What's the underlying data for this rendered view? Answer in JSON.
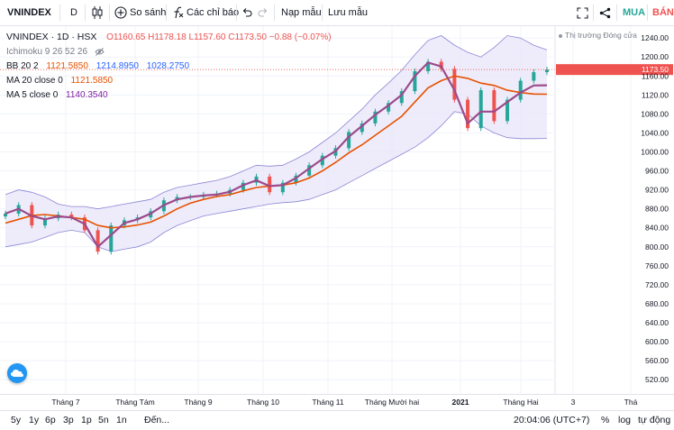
{
  "toolbar": {
    "symbol": "VNINDEX",
    "interval": "D",
    "compare_label": "So sánh",
    "indicators_label": "Các chỉ báo",
    "load_label": "Nạp mẫu",
    "save_label": "Lưu mẫu",
    "buy_label": "MUA",
    "sell_label": "BÁN",
    "icons": [
      "candles-icon",
      "plus-circle-icon",
      "function-icon",
      "undo-icon",
      "redo-icon",
      "fullscreen-icon",
      "share-icon"
    ]
  },
  "legend": {
    "title": "VNINDEX · 1D · HSX",
    "ohlc": "O1160.65  H1178.18  L1157.60  C1173.50  −0.88 (−0.07%)",
    "ichimoku_label": "Ichimoku 9 26 52 26",
    "bb_label": "BB 20 2",
    "bb_basis": "1121.5850",
    "bb_upper": "1214.8950",
    "bb_lower": "1028.2750",
    "ma20_label": "MA 20 close 0",
    "ma20_value": "1121.5850",
    "ma5_label": "MA 5 close 0",
    "ma5_value": "1140.3540"
  },
  "market_status": "Thị trường Đóng cửa",
  "bottom_bar": {
    "ranges": [
      "5y",
      "1y",
      "6p",
      "3p",
      "1p",
      "5n",
      "1n"
    ],
    "goto_label": "Đến...",
    "clock": "20:04:06 (UTC+7)",
    "percent_label": "%",
    "log_label": "log",
    "auto_label": "tự động"
  },
  "colors": {
    "up": "#26a69a",
    "down": "#ef5350",
    "bb_band_fill": "#e8e6f8",
    "bb_band_line": "#8c86d6",
    "ma20": "#e65100",
    "ma5": "#9c4a8c",
    "accent": "#2962ff"
  },
  "chart_data": {
    "type": "line",
    "title": "VNINDEX · 1D · HSX",
    "xlabel": "",
    "ylabel": "",
    "x_tick_labels": [
      "Tháng 7",
      "Tháng Tám",
      "Tháng 9",
      "Tháng 10",
      "Tháng 11",
      "Tháng Mười hai",
      "2021",
      "Tháng Hai",
      "3",
      "Thá"
    ],
    "y_tick_labels": [
      1240,
      1200,
      1160,
      1120,
      1080,
      1040,
      1000,
      960,
      920,
      880,
      840,
      800,
      760,
      720,
      680,
      640,
      600,
      560,
      520
    ],
    "y_range": [
      490,
      1265
    ],
    "last_price_label": "1173.50",
    "grid": true,
    "legend_position": "top-left",
    "x": [
      "Jun-11",
      "Jun-18",
      "Jun-25",
      "Jul-02",
      "Jul-09",
      "Jul-16",
      "Jul-23",
      "Jul-30",
      "Aug-06",
      "Aug-13",
      "Aug-20",
      "Aug-27",
      "Sep-03",
      "Sep-10",
      "Sep-17",
      "Sep-24",
      "Oct-01",
      "Oct-08",
      "Oct-15",
      "Oct-22",
      "Oct-29",
      "Nov-05",
      "Nov-12",
      "Nov-19",
      "Nov-26",
      "Dec-03",
      "Dec-10",
      "Dec-17",
      "Dec-24",
      "Dec-31",
      "Jan-07",
      "Jan-14",
      "Jan-19",
      "Jan-22",
      "Jan-26",
      "Jan-29",
      "Feb-02",
      "Feb-05",
      "Feb-09",
      "Feb-18",
      "Feb-22",
      "Feb-24"
    ],
    "series": [
      {
        "name": "VNINDEX",
        "values": [
          870,
          888,
          845,
          860,
          868,
          862,
          835,
          790,
          845,
          856,
          862,
          875,
          898,
          905,
          905,
          910,
          912,
          920,
          935,
          948,
          915,
          935,
          950,
          972,
          992,
          1008,
          1042,
          1060,
          1085,
          1103,
          1128,
          1170,
          1190,
          1175,
          1110,
          1050,
          1130,
          1065,
          1110,
          1150,
          1168,
          1173.5
        ]
      },
      {
        "name": "MA 20 close 0",
        "values": [
          850,
          858,
          866,
          868,
          865,
          862,
          858,
          845,
          840,
          842,
          846,
          852,
          865,
          880,
          892,
          900,
          906,
          910,
          918,
          925,
          928,
          930,
          935,
          945,
          960,
          978,
          998,
          1015,
          1035,
          1055,
          1075,
          1105,
          1135,
          1150,
          1160,
          1155,
          1145,
          1140,
          1130,
          1125,
          1122,
          1121.585
        ]
      },
      {
        "name": "MA 5 close 0",
        "values": [
          870,
          880,
          865,
          858,
          864,
          862,
          848,
          800,
          825,
          850,
          858,
          870,
          888,
          900,
          905,
          908,
          910,
          916,
          930,
          940,
          928,
          930,
          945,
          965,
          985,
          1002,
          1032,
          1055,
          1078,
          1098,
          1120,
          1160,
          1188,
          1180,
          1130,
          1060,
          1085,
          1085,
          1105,
          1125,
          1140,
          1140.354
        ]
      },
      {
        "name": "BB 20 2",
        "values": [
          910,
          920,
          915,
          905,
          890,
          885,
          885,
          880,
          885,
          890,
          895,
          900,
          915,
          925,
          930,
          935,
          940,
          948,
          960,
          972,
          970,
          972,
          985,
          1000,
          1020,
          1040,
          1065,
          1090,
          1120,
          1145,
          1172,
          1205,
          1235,
          1245,
          1225,
          1210,
          1200,
          1220,
          1245,
          1240,
          1225,
          1214.895
        ]
      },
      {
        "name": "BB lower",
        "values": [
          800,
          805,
          810,
          820,
          830,
          835,
          830,
          800,
          790,
          795,
          800,
          810,
          830,
          845,
          855,
          865,
          870,
          875,
          880,
          885,
          890,
          893,
          895,
          900,
          910,
          920,
          935,
          950,
          965,
          980,
          995,
          1010,
          1030,
          1055,
          1085,
          1080,
          1055,
          1040,
          1030,
          1028,
          1028,
          1028.275
        ]
      }
    ]
  }
}
